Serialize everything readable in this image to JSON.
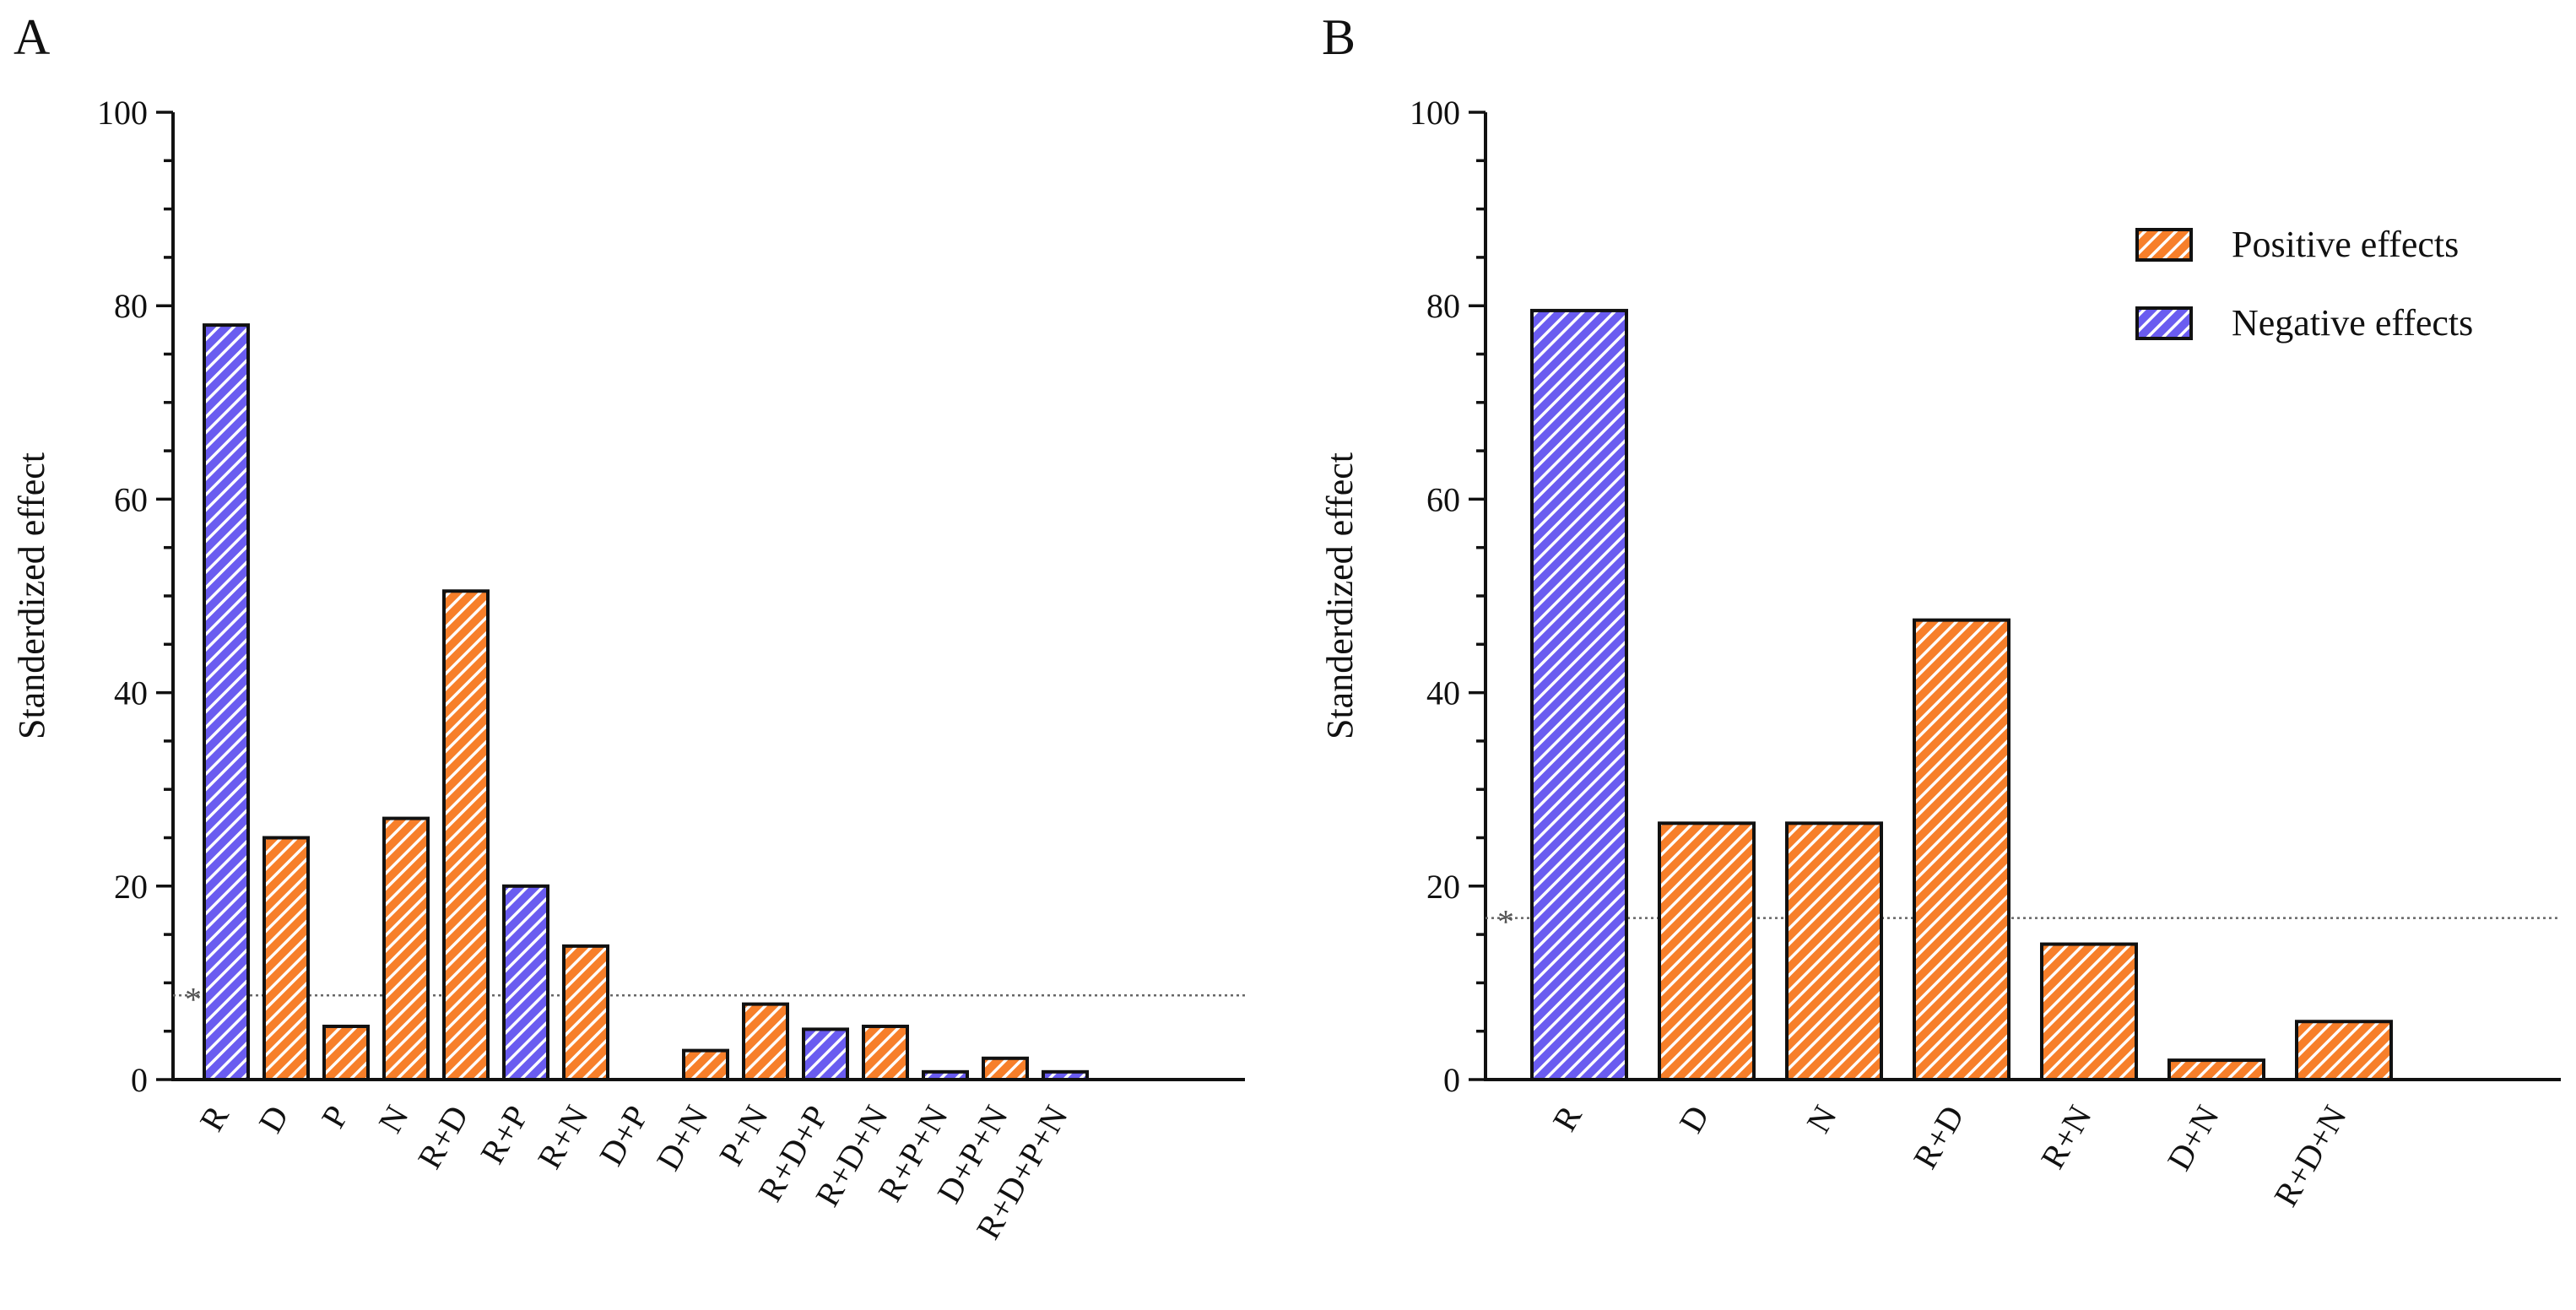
{
  "figure": {
    "panels": [
      "A",
      "B"
    ],
    "significance_marker": "*"
  },
  "colors": {
    "positive_fill": "#f77f2a",
    "negative_fill": "#6a5cf0",
    "hatch_stripe": "#ffffff",
    "bar_stroke": "#111111",
    "threshold_line": "#666666"
  },
  "legend": {
    "items": [
      {
        "label": "Positive effects",
        "sign": "positive"
      },
      {
        "label": "Negative effects",
        "sign": "negative"
      }
    ]
  },
  "chart_data": [
    {
      "type": "bar",
      "panel": "A",
      "title": "",
      "xlabel": "",
      "ylabel": "Standerdized effect",
      "ylim": [
        0,
        100
      ],
      "yticks": [
        0,
        20,
        40,
        60,
        80,
        100
      ],
      "categories": [
        "R",
        "D",
        "P",
        "N",
        "R+D",
        "R+P",
        "R+N",
        "D+P",
        "D+N",
        "P+N",
        "R+D+P",
        "R+D+N",
        "R+P+N",
        "D+P+N",
        "R+D+P+N"
      ],
      "values": [
        78,
        25,
        5.5,
        27,
        50.5,
        20,
        13.8,
        0,
        3,
        7.8,
        5.2,
        5.5,
        0.8,
        2.2,
        0.8
      ],
      "effect_sign": [
        "negative",
        "positive",
        "positive",
        "positive",
        "positive",
        "negative",
        "positive",
        "positive",
        "positive",
        "positive",
        "negative",
        "positive",
        "negative",
        "positive",
        "negative"
      ],
      "threshold": 8.7,
      "legend": false
    },
    {
      "type": "bar",
      "panel": "B",
      "title": "",
      "xlabel": "",
      "ylabel": "Standerdized effect",
      "ylim": [
        0,
        100
      ],
      "yticks": [
        0,
        20,
        40,
        60,
        80,
        100
      ],
      "categories": [
        "R",
        "D",
        "N",
        "R+D",
        "R+N",
        "D+N",
        "R+D+N"
      ],
      "values": [
        79.5,
        26.5,
        26.5,
        47.5,
        14,
        2,
        6
      ],
      "effect_sign": [
        "negative",
        "positive",
        "positive",
        "positive",
        "positive",
        "positive",
        "positive"
      ],
      "threshold": 16.7,
      "legend": "top-right"
    }
  ]
}
